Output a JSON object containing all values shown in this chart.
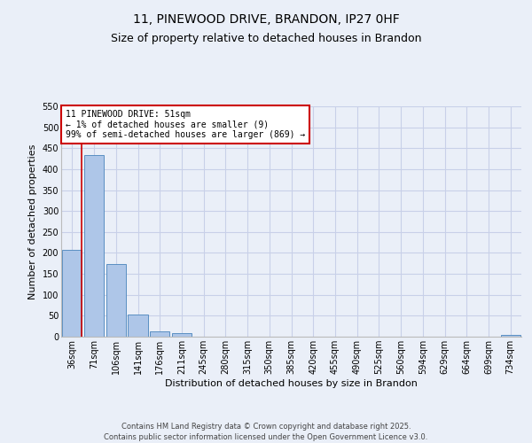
{
  "title_line1": "11, PINEWOOD DRIVE, BRANDON, IP27 0HF",
  "title_line2": "Size of property relative to detached houses in Brandon",
  "xlabel": "Distribution of detached houses by size in Brandon",
  "ylabel": "Number of detached properties",
  "bar_labels": [
    "36sqm",
    "71sqm",
    "106sqm",
    "141sqm",
    "176sqm",
    "211sqm",
    "245sqm",
    "280sqm",
    "315sqm",
    "350sqm",
    "385sqm",
    "420sqm",
    "455sqm",
    "490sqm",
    "525sqm",
    "560sqm",
    "594sqm",
    "629sqm",
    "664sqm",
    "699sqm",
    "734sqm"
  ],
  "bar_values": [
    207,
    433,
    173,
    53,
    12,
    8,
    0,
    0,
    0,
    0,
    0,
    0,
    0,
    0,
    0,
    0,
    0,
    0,
    0,
    0,
    5
  ],
  "bar_color": "#aec6e8",
  "bar_edge_color": "#5a8fc2",
  "background_color": "#eaeff8",
  "grid_color": "#c8d0e8",
  "red_line_x": 0.43,
  "annotation_text": "11 PINEWOOD DRIVE: 51sqm\n← 1% of detached houses are smaller (9)\n99% of semi-detached houses are larger (869) →",
  "annotation_box_color": "#ffffff",
  "annotation_border_color": "#cc0000",
  "ylim": [
    0,
    550
  ],
  "yticks": [
    0,
    50,
    100,
    150,
    200,
    250,
    300,
    350,
    400,
    450,
    500,
    550
  ],
  "footer_line1": "Contains HM Land Registry data © Crown copyright and database right 2025.",
  "footer_line2": "Contains public sector information licensed under the Open Government Licence v3.0.",
  "title_fontsize": 10,
  "subtitle_fontsize": 9,
  "axis_label_fontsize": 8,
  "tick_fontsize": 7,
  "annotation_fontsize": 7,
  "footer_fontsize": 6
}
